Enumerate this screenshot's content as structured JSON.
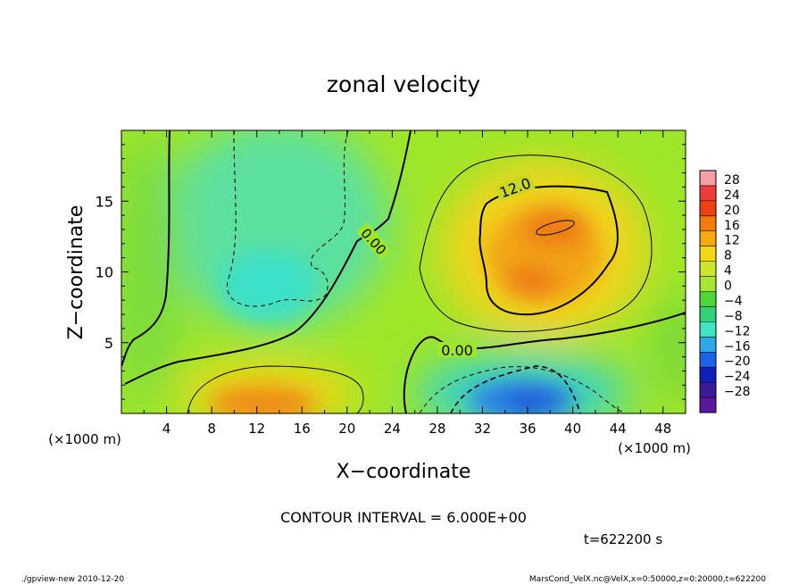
{
  "chart_data": {
    "type": "heatmap",
    "title": "zonal velocity",
    "xlabel": "X−coordinate",
    "ylabel": "Z−coordinate",
    "x_unit_left": "(×1000 m)",
    "x_unit_right": "(×1000 m)",
    "xlim": [
      0,
      50
    ],
    "ylim": [
      0,
      20
    ],
    "x_ticks": [
      "4",
      "8",
      "12",
      "16",
      "20",
      "24",
      "28",
      "32",
      "36",
      "40",
      "44",
      "48"
    ],
    "y_ticks": [
      "5",
      "10",
      "15"
    ],
    "colorbar": {
      "labels": [
        "28",
        "24",
        "20",
        "16",
        "12",
        "8",
        "4",
        "0",
        "−4",
        "−8",
        "−12",
        "−16",
        "−20",
        "−24",
        "−28"
      ],
      "colors": [
        "#f59ea6",
        "#ee3b3b",
        "#ee4010",
        "#f07c10",
        "#f5ab10",
        "#f0d818",
        "#cde62c",
        "#a8e634",
        "#4dd63a",
        "#33d17a",
        "#3de5c0",
        "#2ea9e6",
        "#1c62e6",
        "#0f1fb8",
        "#3a1a99",
        "#5a189a"
      ]
    },
    "contour_labels": [
      "12.0",
      "0.00",
      "0.00"
    ],
    "contour_interval": "CONTOUR INTERVAL = 6.000E+00",
    "time": "t=622200 s",
    "footer_left": "./gpview-new  2010-12-20",
    "footer_right": "MarsCond_VelX.nc@VelX,x=0:50000,z=0:20000,t=622200",
    "blobs": [
      {
        "label": "background",
        "x": 25,
        "z": 10,
        "value": 4
      },
      {
        "label": "upper-left low",
        "x": 14,
        "z": 12,
        "value": -6
      },
      {
        "label": "upper-left low 2",
        "x": 13,
        "z": 8,
        "value": -8
      },
      {
        "label": "right high",
        "x": 37,
        "z": 11.5,
        "value": 13
      },
      {
        "label": "right high core",
        "x": 38,
        "z": 12.5,
        "value": 18
      },
      {
        "label": "right high core 2",
        "x": 36,
        "z": 9.5,
        "value": 17
      },
      {
        "label": "bottom-left high",
        "x": 13,
        "z": 1.2,
        "value": 14
      },
      {
        "label": "bottom-left core",
        "x": 13,
        "z": 0.8,
        "value": 17
      },
      {
        "label": "bottom-right low",
        "x": 36,
        "z": 1.5,
        "value": -12
      },
      {
        "label": "bottom-right core",
        "x": 36,
        "z": 1.2,
        "value": -20
      },
      {
        "label": "left edge mid",
        "x": 1,
        "z": 6,
        "value": 2
      },
      {
        "label": "center low",
        "x": 26,
        "z": 4,
        "value": 1
      }
    ]
  }
}
